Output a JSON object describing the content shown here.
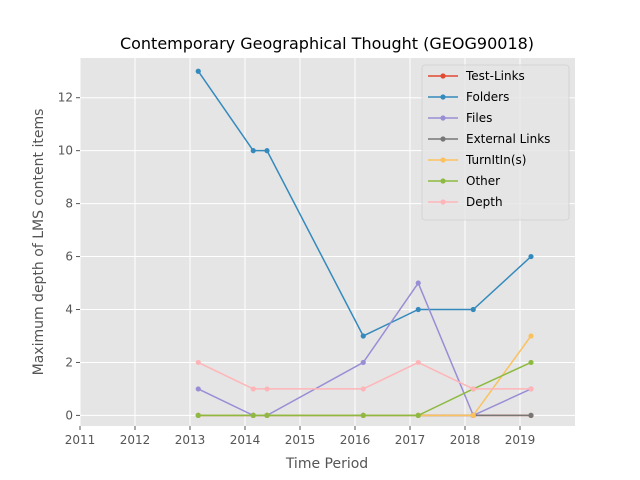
{
  "chart_data": {
    "type": "line",
    "title": "Contemporary Geographical Thought (GEOG90018)",
    "xlabel": "Time Period",
    "ylabel": "Maximum depth of LMS content items",
    "xlim": [
      2011,
      2020
    ],
    "ylim": [
      -0.4,
      13.5
    ],
    "x_ticks": [
      2011,
      2012,
      2013,
      2014,
      2015,
      2016,
      2017,
      2018,
      2019
    ],
    "y_ticks": [
      0,
      2,
      4,
      6,
      8,
      10,
      12
    ],
    "grid": true,
    "legend_position": "top-right",
    "series": [
      {
        "name": "Test-Links",
        "color": "#E24A33",
        "points": [
          [
            2013.15,
            0
          ],
          [
            2014.15,
            0
          ],
          [
            2014.4,
            0
          ],
          [
            2016.15,
            0
          ],
          [
            2017.15,
            0
          ],
          [
            2018.15,
            0
          ],
          [
            2019.2,
            0
          ]
        ]
      },
      {
        "name": "Folders",
        "color": "#348ABD",
        "points": [
          [
            2013.15,
            13
          ],
          [
            2014.15,
            10
          ],
          [
            2014.4,
            10
          ],
          [
            2016.15,
            3
          ],
          [
            2017.15,
            4
          ],
          [
            2018.15,
            4
          ],
          [
            2019.2,
            6
          ]
        ]
      },
      {
        "name": "Files",
        "color": "#988ED5",
        "points": [
          [
            2013.15,
            1
          ],
          [
            2014.15,
            0
          ],
          [
            2014.4,
            0
          ],
          [
            2016.15,
            2
          ],
          [
            2017.15,
            5
          ],
          [
            2018.15,
            0
          ],
          [
            2019.2,
            1
          ]
        ]
      },
      {
        "name": "External Links",
        "color": "#777777",
        "points": [
          [
            2013.15,
            0
          ],
          [
            2014.15,
            0
          ],
          [
            2014.4,
            0
          ],
          [
            2016.15,
            0
          ],
          [
            2017.15,
            0
          ],
          [
            2018.15,
            0
          ],
          [
            2019.2,
            0
          ]
        ]
      },
      {
        "name": "TurnItIn(s)",
        "color": "#FBC15E",
        "points": [
          [
            2013.15,
            0
          ],
          [
            2014.15,
            0
          ],
          [
            2014.4,
            0
          ],
          [
            2016.15,
            0
          ],
          [
            2017.15,
            0
          ],
          [
            2018.15,
            0
          ],
          [
            2019.2,
            3
          ]
        ]
      },
      {
        "name": "Other",
        "color": "#8EBA42",
        "points": [
          [
            2013.15,
            0
          ],
          [
            2014.15,
            0
          ],
          [
            2014.4,
            0
          ],
          [
            2016.15,
            0
          ],
          [
            2017.15,
            0
          ],
          [
            2018.15,
            1
          ],
          [
            2019.2,
            2
          ]
        ]
      },
      {
        "name": "Depth",
        "color": "#FFB5B8",
        "points": [
          [
            2013.15,
            2
          ],
          [
            2014.15,
            1
          ],
          [
            2014.4,
            1
          ],
          [
            2016.15,
            1
          ],
          [
            2017.15,
            2
          ],
          [
            2018.15,
            1
          ],
          [
            2019.2,
            1
          ]
        ]
      }
    ]
  }
}
